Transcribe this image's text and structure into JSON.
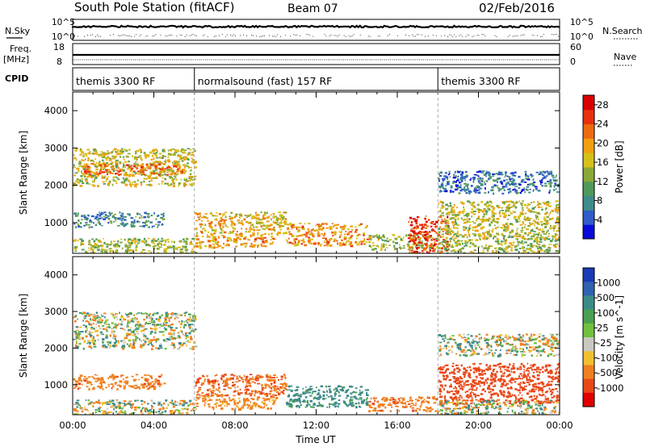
{
  "header": {
    "station": "South Pole Station (fitACF)",
    "beam": "Beam 07",
    "date": "02/Feb/2016"
  },
  "top_panel": {
    "nsky_label": "N.Sky",
    "nsearch_label": "N.Search",
    "y_ticks_left": [
      "10^5",
      "10^0"
    ],
    "y_ticks_right": [
      "10^5",
      "10^0"
    ],
    "freq_label": "Freq.",
    "freq_unit": "[MHz]",
    "freq_ticks": [
      "18",
      "8"
    ],
    "nave_label": "Nave",
    "nave_ticks": [
      "60",
      "0"
    ],
    "cpid_label": "CPID",
    "modes": [
      {
        "name": "themis 3300 RF",
        "start_hour": 0,
        "end_hour": 6
      },
      {
        "name": "normalsound (fast) 157 RF",
        "start_hour": 6,
        "end_hour": 18
      },
      {
        "name": "themis 3300 RF",
        "start_hour": 18,
        "end_hour": 24
      }
    ]
  },
  "chart_data": [
    {
      "type": "heatmap",
      "name": "Power",
      "ylabel": "Slant Range [km]",
      "xlabel": "",
      "ylim": [
        180,
        4500
      ],
      "xlim_hours": [
        0,
        24
      ],
      "y_ticks": [
        1000,
        2000,
        3000,
        4000
      ],
      "colorbar": {
        "label": "Power [dB]",
        "ticks": [
          4,
          8,
          12,
          16,
          20,
          24,
          28
        ],
        "range": [
          0,
          30
        ],
        "colors": [
          "#0a0ad8",
          "#2f5cc8",
          "#3f8c8c",
          "#4f9a5a",
          "#8aa838",
          "#d6c018",
          "#f0a010",
          "#ee6a10",
          "#e83010",
          "#d80000"
        ]
      },
      "echo_regions": [
        {
          "t0": 0.0,
          "t1": 6.0,
          "r0": 2000,
          "r1": 3000,
          "power": 16
        },
        {
          "t0": 0.5,
          "t1": 5.5,
          "r0": 2300,
          "r1": 2600,
          "power": 22
        },
        {
          "t0": 0.0,
          "t1": 4.5,
          "r0": 900,
          "r1": 1300,
          "power": 8
        },
        {
          "t0": 0.0,
          "t1": 6.0,
          "r0": 180,
          "r1": 600,
          "power": 14
        },
        {
          "t0": 6.0,
          "t1": 10.5,
          "r0": 700,
          "r1": 1300,
          "power": 18
        },
        {
          "t0": 6.0,
          "t1": 10.0,
          "r0": 350,
          "r1": 700,
          "power": 20
        },
        {
          "t0": 10.5,
          "t1": 14.5,
          "r0": 400,
          "r1": 1000,
          "power": 20
        },
        {
          "t0": 14.5,
          "t1": 18.0,
          "r0": 300,
          "r1": 700,
          "power": 14
        },
        {
          "t0": 16.5,
          "t1": 18.5,
          "r0": 200,
          "r1": 1200,
          "power": 26
        },
        {
          "t0": 18.0,
          "t1": 24.0,
          "r0": 600,
          "r1": 1600,
          "power": 16
        },
        {
          "t0": 18.0,
          "t1": 24.0,
          "r0": 1800,
          "r1": 2400,
          "power": 6
        },
        {
          "t0": 18.0,
          "t1": 24.0,
          "r0": 180,
          "r1": 600,
          "power": 14
        }
      ]
    },
    {
      "type": "heatmap",
      "name": "Velocity",
      "ylabel": "Slant Range [km]",
      "xlabel": "Time UT",
      "ylim": [
        180,
        4500
      ],
      "xlim_hours": [
        0,
        24
      ],
      "y_ticks": [
        1000,
        2000,
        3000,
        4000
      ],
      "x_ticks": [
        "00:00",
        "04:00",
        "08:00",
        "12:00",
        "16:00",
        "20:00",
        "00:00"
      ],
      "colorbar": {
        "label": "Velocity [m s^-1]",
        "ticks": [
          1000,
          500,
          100,
          25,
          -25,
          -100,
          -500,
          -1000
        ],
        "colors": [
          "#1a3ab8",
          "#2f62b0",
          "#3c8a88",
          "#4aa050",
          "#70c040",
          "#c8c8c0",
          "#f0c030",
          "#f08020",
          "#e84818",
          "#e00000"
        ]
      },
      "echo_regions": [
        {
          "t0": 0.0,
          "t1": 6.0,
          "r0": 2000,
          "r1": 3000,
          "velocity": 0
        },
        {
          "t0": 0.0,
          "t1": 4.5,
          "r0": 900,
          "r1": 1300,
          "velocity": -200
        },
        {
          "t0": 0.0,
          "t1": 6.0,
          "r0": 180,
          "r1": 600,
          "velocity": 0
        },
        {
          "t0": 6.0,
          "t1": 10.5,
          "r0": 700,
          "r1": 1300,
          "velocity": -300
        },
        {
          "t0": 6.0,
          "t1": 10.0,
          "r0": 350,
          "r1": 700,
          "velocity": -150
        },
        {
          "t0": 10.5,
          "t1": 14.5,
          "r0": 400,
          "r1": 1000,
          "velocity": 150
        },
        {
          "t0": 14.5,
          "t1": 18.0,
          "r0": 300,
          "r1": 700,
          "velocity": -200
        },
        {
          "t0": 18.0,
          "t1": 24.0,
          "r0": 500,
          "r1": 1600,
          "velocity": -500
        },
        {
          "t0": 18.0,
          "t1": 24.0,
          "r0": 1800,
          "r1": 2400,
          "velocity": 0
        },
        {
          "t0": 18.0,
          "t1": 24.0,
          "r0": 180,
          "r1": 600,
          "velocity": 0
        }
      ]
    }
  ]
}
